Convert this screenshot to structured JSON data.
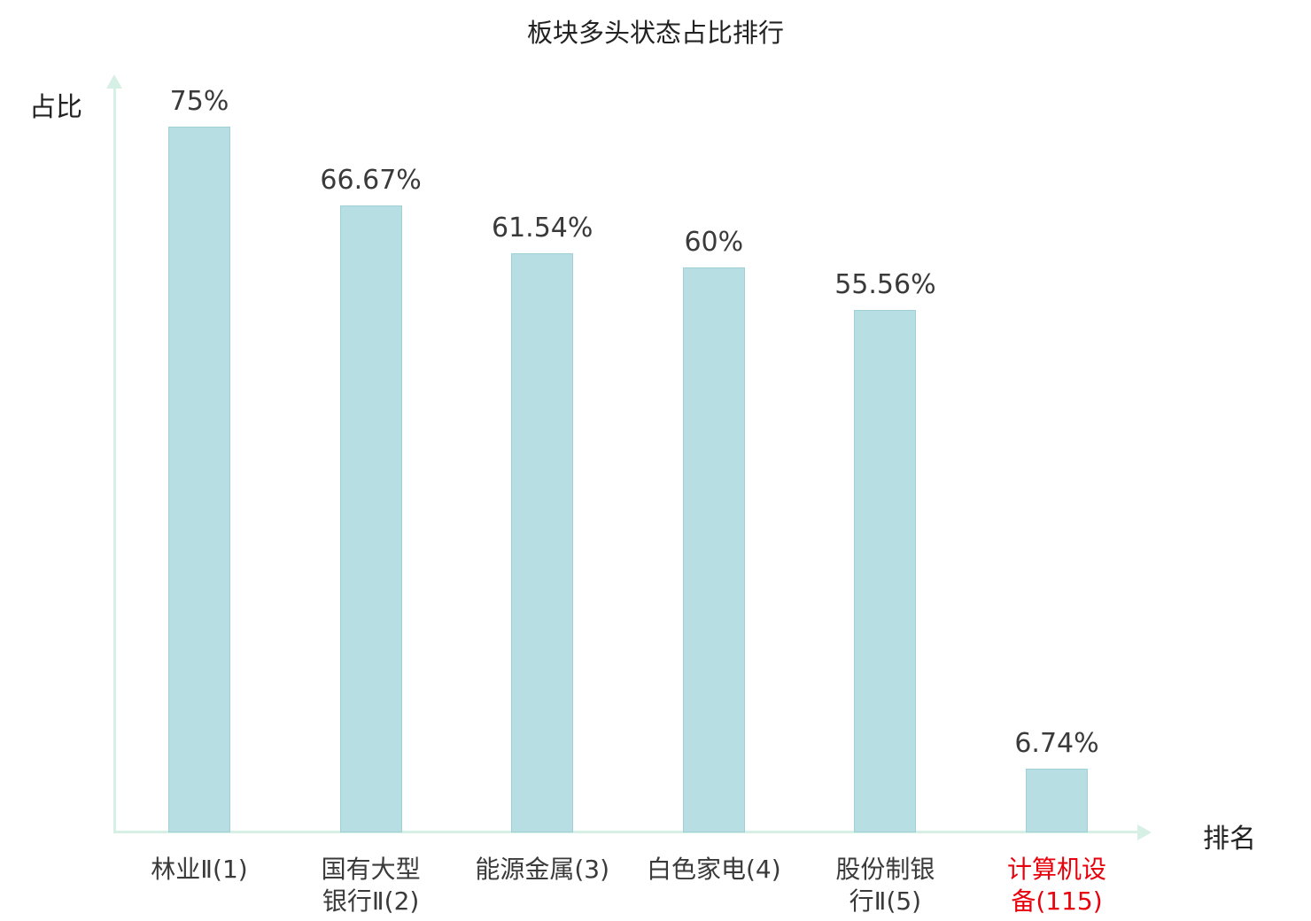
{
  "title": "板块多头状态占比排行",
  "y_axis_label": "占比",
  "x_axis_label": "排名",
  "colors": {
    "bar_fill": "#b6dee3",
    "bar_border": "#9fd0d6",
    "axis": "#d7f0e6",
    "label": "#3a3a3a",
    "highlight_label": "#e8000b",
    "background": "#ffffff"
  },
  "chart_data": {
    "type": "bar",
    "title": "板块多头状态占比排行",
    "xlabel": "排名",
    "ylabel": "占比",
    "categories": [
      "林业Ⅱ(1)",
      "国有大型\n银行Ⅱ(2)",
      "能源金属(3)",
      "白色家电(4)",
      "股份制银\n行Ⅱ(5)",
      "计算机设\n备(115)"
    ],
    "values": [
      75,
      66.67,
      61.54,
      60,
      55.56,
      6.74
    ],
    "value_labels": [
      "75%",
      "66.67%",
      "61.54%",
      "60%",
      "55.56%",
      "6.74%"
    ],
    "highlight_index": 5,
    "ylim": [
      0,
      80
    ],
    "grid": false,
    "legend": "none"
  }
}
